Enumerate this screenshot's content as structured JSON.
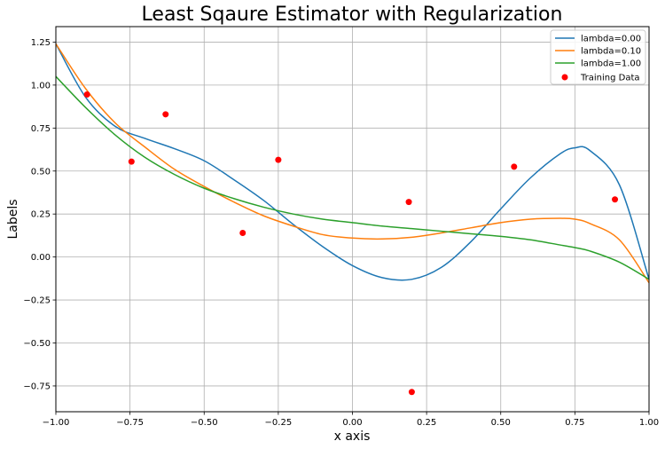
{
  "chart_data": {
    "type": "line",
    "title": "Least Sqaure Estimator with Regularization",
    "xlabel": "x axis",
    "ylabel": "Labels",
    "xlim": [
      -1.0,
      1.0
    ],
    "ylim": [
      -0.9,
      1.34
    ],
    "grid": true,
    "legend_position": "top-right",
    "x_ticks": [
      -1.0,
      -0.75,
      -0.5,
      -0.25,
      0.0,
      0.25,
      0.5,
      0.75,
      1.0
    ],
    "x_tick_labels": [
      "−1.00",
      "−0.75",
      "−0.50",
      "−0.25",
      "0.00",
      "0.25",
      "0.50",
      "0.75",
      "1.00"
    ],
    "y_ticks": [
      1.25,
      1.0,
      0.75,
      0.5,
      0.25,
      0.0,
      -0.25,
      -0.5,
      -0.75
    ],
    "y_tick_labels": [
      "1.25",
      "1.00",
      "0.75",
      "0.50",
      "0.25",
      "0.00",
      "−0.25",
      "−0.50",
      "−0.75"
    ],
    "x": [
      -1.0,
      -0.9,
      -0.8,
      -0.7,
      -0.6,
      -0.5,
      -0.4,
      -0.3,
      -0.2,
      -0.1,
      0.0,
      0.1,
      0.2,
      0.3,
      0.4,
      0.5,
      0.6,
      0.7,
      0.75,
      0.8,
      0.9,
      1.0
    ],
    "series": [
      {
        "name": "lambda=0.00",
        "color": "#1f77b4",
        "values": [
          1.24,
          0.93,
          0.76,
          0.69,
          0.63,
          0.56,
          0.45,
          0.33,
          0.19,
          0.06,
          -0.05,
          -0.12,
          -0.13,
          -0.06,
          0.09,
          0.28,
          0.46,
          0.6,
          0.635,
          0.62,
          0.42,
          -0.13
        ]
      },
      {
        "name": "lambda=0.10",
        "color": "#ff7f0e",
        "values": [
          1.24,
          0.98,
          0.78,
          0.64,
          0.51,
          0.41,
          0.32,
          0.24,
          0.18,
          0.13,
          0.11,
          0.105,
          0.115,
          0.14,
          0.17,
          0.2,
          0.22,
          0.225,
          0.22,
          0.195,
          0.1,
          -0.15
        ]
      },
      {
        "name": "lambda=1.00",
        "color": "#2ca02c",
        "values": [
          1.05,
          0.87,
          0.71,
          0.58,
          0.48,
          0.4,
          0.34,
          0.29,
          0.25,
          0.22,
          0.2,
          0.18,
          0.165,
          0.15,
          0.135,
          0.12,
          0.1,
          0.07,
          0.055,
          0.035,
          -0.03,
          -0.13
        ]
      }
    ],
    "scatter": {
      "name": "Training Data",
      "color": "#ff0000",
      "x": [
        -0.895,
        -0.745,
        -0.63,
        -0.37,
        -0.25,
        0.19,
        0.2,
        0.545,
        0.885
      ],
      "y": [
        0.945,
        0.555,
        0.83,
        0.14,
        0.565,
        0.32,
        -0.785,
        0.525,
        0.335
      ]
    }
  }
}
